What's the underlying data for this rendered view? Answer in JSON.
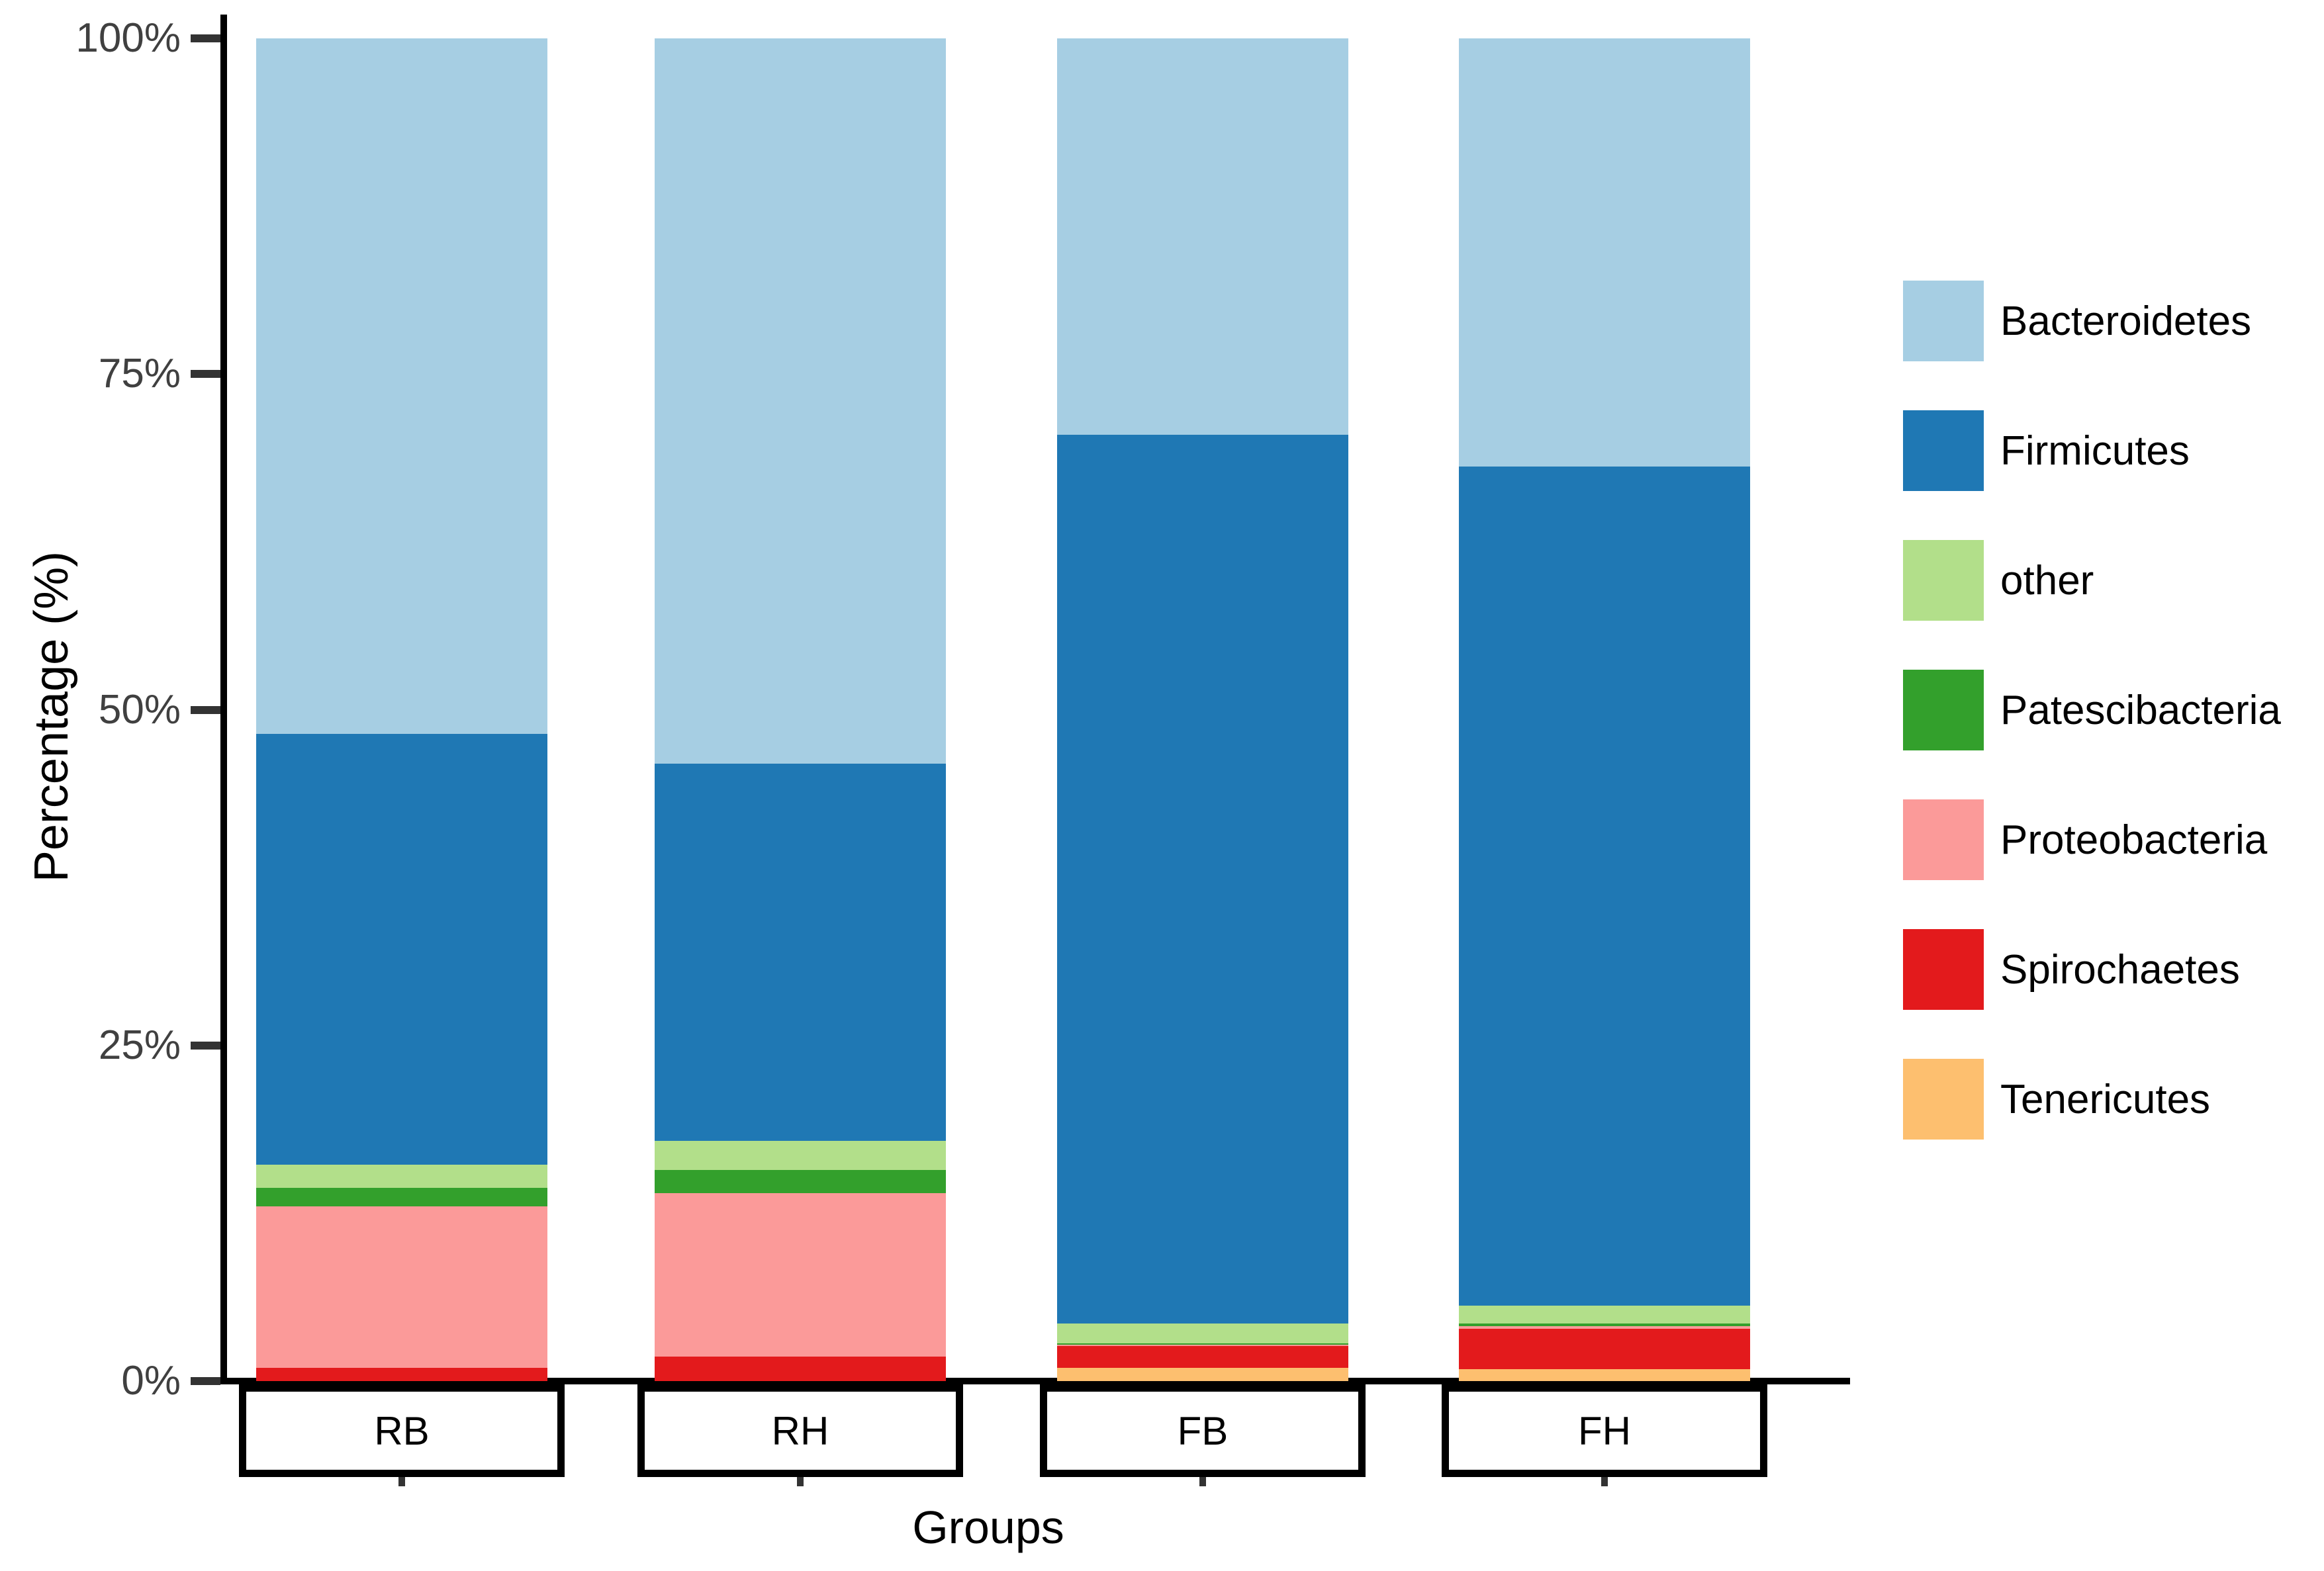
{
  "chart_data": {
    "type": "bar",
    "variant": "stacked-percentage-column",
    "title": "",
    "xlabel": "Groups",
    "ylabel": "Percentage (%)",
    "categories": [
      "RB",
      "RH",
      "FB",
      "FH"
    ],
    "y_ticks": [
      {
        "value": 0,
        "label": "0%"
      },
      {
        "value": 25,
        "label": "25%"
      },
      {
        "value": 50,
        "label": "50%"
      },
      {
        "value": 75,
        "label": "75%"
      },
      {
        "value": 100,
        "label": "100%"
      }
    ],
    "ylim": [
      0,
      100
    ],
    "grid": false,
    "legend_position": "right",
    "series": [
      {
        "name": "Bacteroidetes",
        "color": "#A6CEE3",
        "values": [
          51.8,
          54.0,
          29.5,
          31.9
        ]
      },
      {
        "name": "Firmicutes",
        "color": "#1F78B4",
        "values": [
          32.1,
          28.1,
          66.2,
          62.5
        ]
      },
      {
        "name": "other",
        "color": "#B2DF8A",
        "values": [
          1.7,
          2.2,
          1.5,
          1.3
        ]
      },
      {
        "name": "Patescibacteria",
        "color": "#33A02C",
        "values": [
          1.4,
          1.7,
          0.1,
          0.2
        ]
      },
      {
        "name": "Proteobacteria",
        "color": "#FB9A99",
        "values": [
          12.0,
          12.2,
          0.1,
          0.2
        ]
      },
      {
        "name": "Spirochaetes",
        "color": "#E31A1C",
        "values": [
          1.0,
          1.8,
          1.6,
          3.0
        ]
      },
      {
        "name": "Tenericutes",
        "color": "#FDBF6F",
        "values": [
          0.0,
          0.0,
          1.0,
          0.9
        ]
      }
    ],
    "stack_order_bottom_to_top": [
      "Tenericutes",
      "Spirochaetes",
      "Proteobacteria",
      "Patescibacteria",
      "other",
      "Firmicutes",
      "Bacteroidetes"
    ],
    "legend_items": [
      "Bacteroidetes",
      "Firmicutes",
      "other",
      "Patescibacteria",
      "Proteobacteria",
      "Spirochaetes",
      "Tenericutes"
    ]
  }
}
